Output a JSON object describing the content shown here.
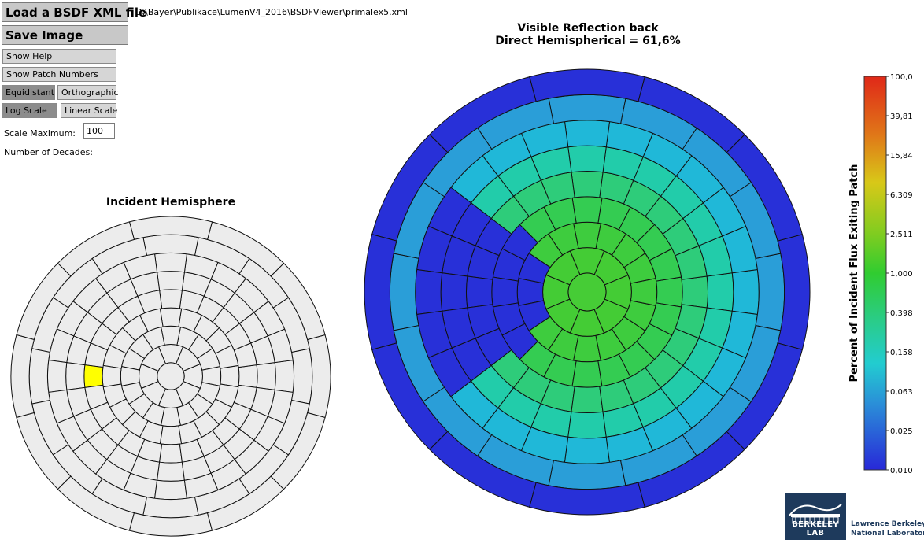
{
  "toolbar": {
    "load_label": "Load a BSDF XML file",
    "save_label": "Save Image",
    "help_label": "Show Help",
    "patch_numbers_label": "Show Patch Numbers",
    "equidistant_label": "Equidistant",
    "orthographic_label": "Orthographic",
    "log_scale_label": "Log Scale",
    "linear_scale_label": "Linear Scale",
    "scale_max_label": "Scale Maximum:",
    "scale_max_value": "100",
    "decades_label": "Number of Decades:"
  },
  "file": {
    "path": "D:\\Bayer\\Publikace\\LumenV4_2016\\BSDFViewer\\primalex5.xml"
  },
  "incident": {
    "title": "Incident Hemisphere",
    "highlight_color": "#ffff00",
    "base_color": "#ececec"
  },
  "result": {
    "title_line1": "Visible Reflection back",
    "title_line2": "Direct Hemispherical = 61,6%"
  },
  "scale": {
    "label": "Percent of Incident Flux Exiting Patch",
    "ticks": [
      "100,0",
      "39,81",
      "15,84",
      "6,309",
      "2,511",
      "1,000",
      "0,398",
      "0,158",
      "0,063",
      "0,025",
      "0,010"
    ]
  },
  "ring_divisions": [
    1,
    8,
    16,
    20,
    24,
    24,
    24,
    16,
    12
  ],
  "ring_colors": [
    "#46cc36",
    "#44cc35",
    "#3ecc3e",
    "#34cc52",
    "#2ecc7a",
    "#22ccaa",
    "#20b8d8",
    "#2a9ed8",
    "#2830d8"
  ],
  "dark_patch_color": "#2830d8",
  "logo": {
    "mark": "BERKELEY LAB",
    "line1": "Lawrence Berkeley",
    "line2": "National Laboratory"
  }
}
